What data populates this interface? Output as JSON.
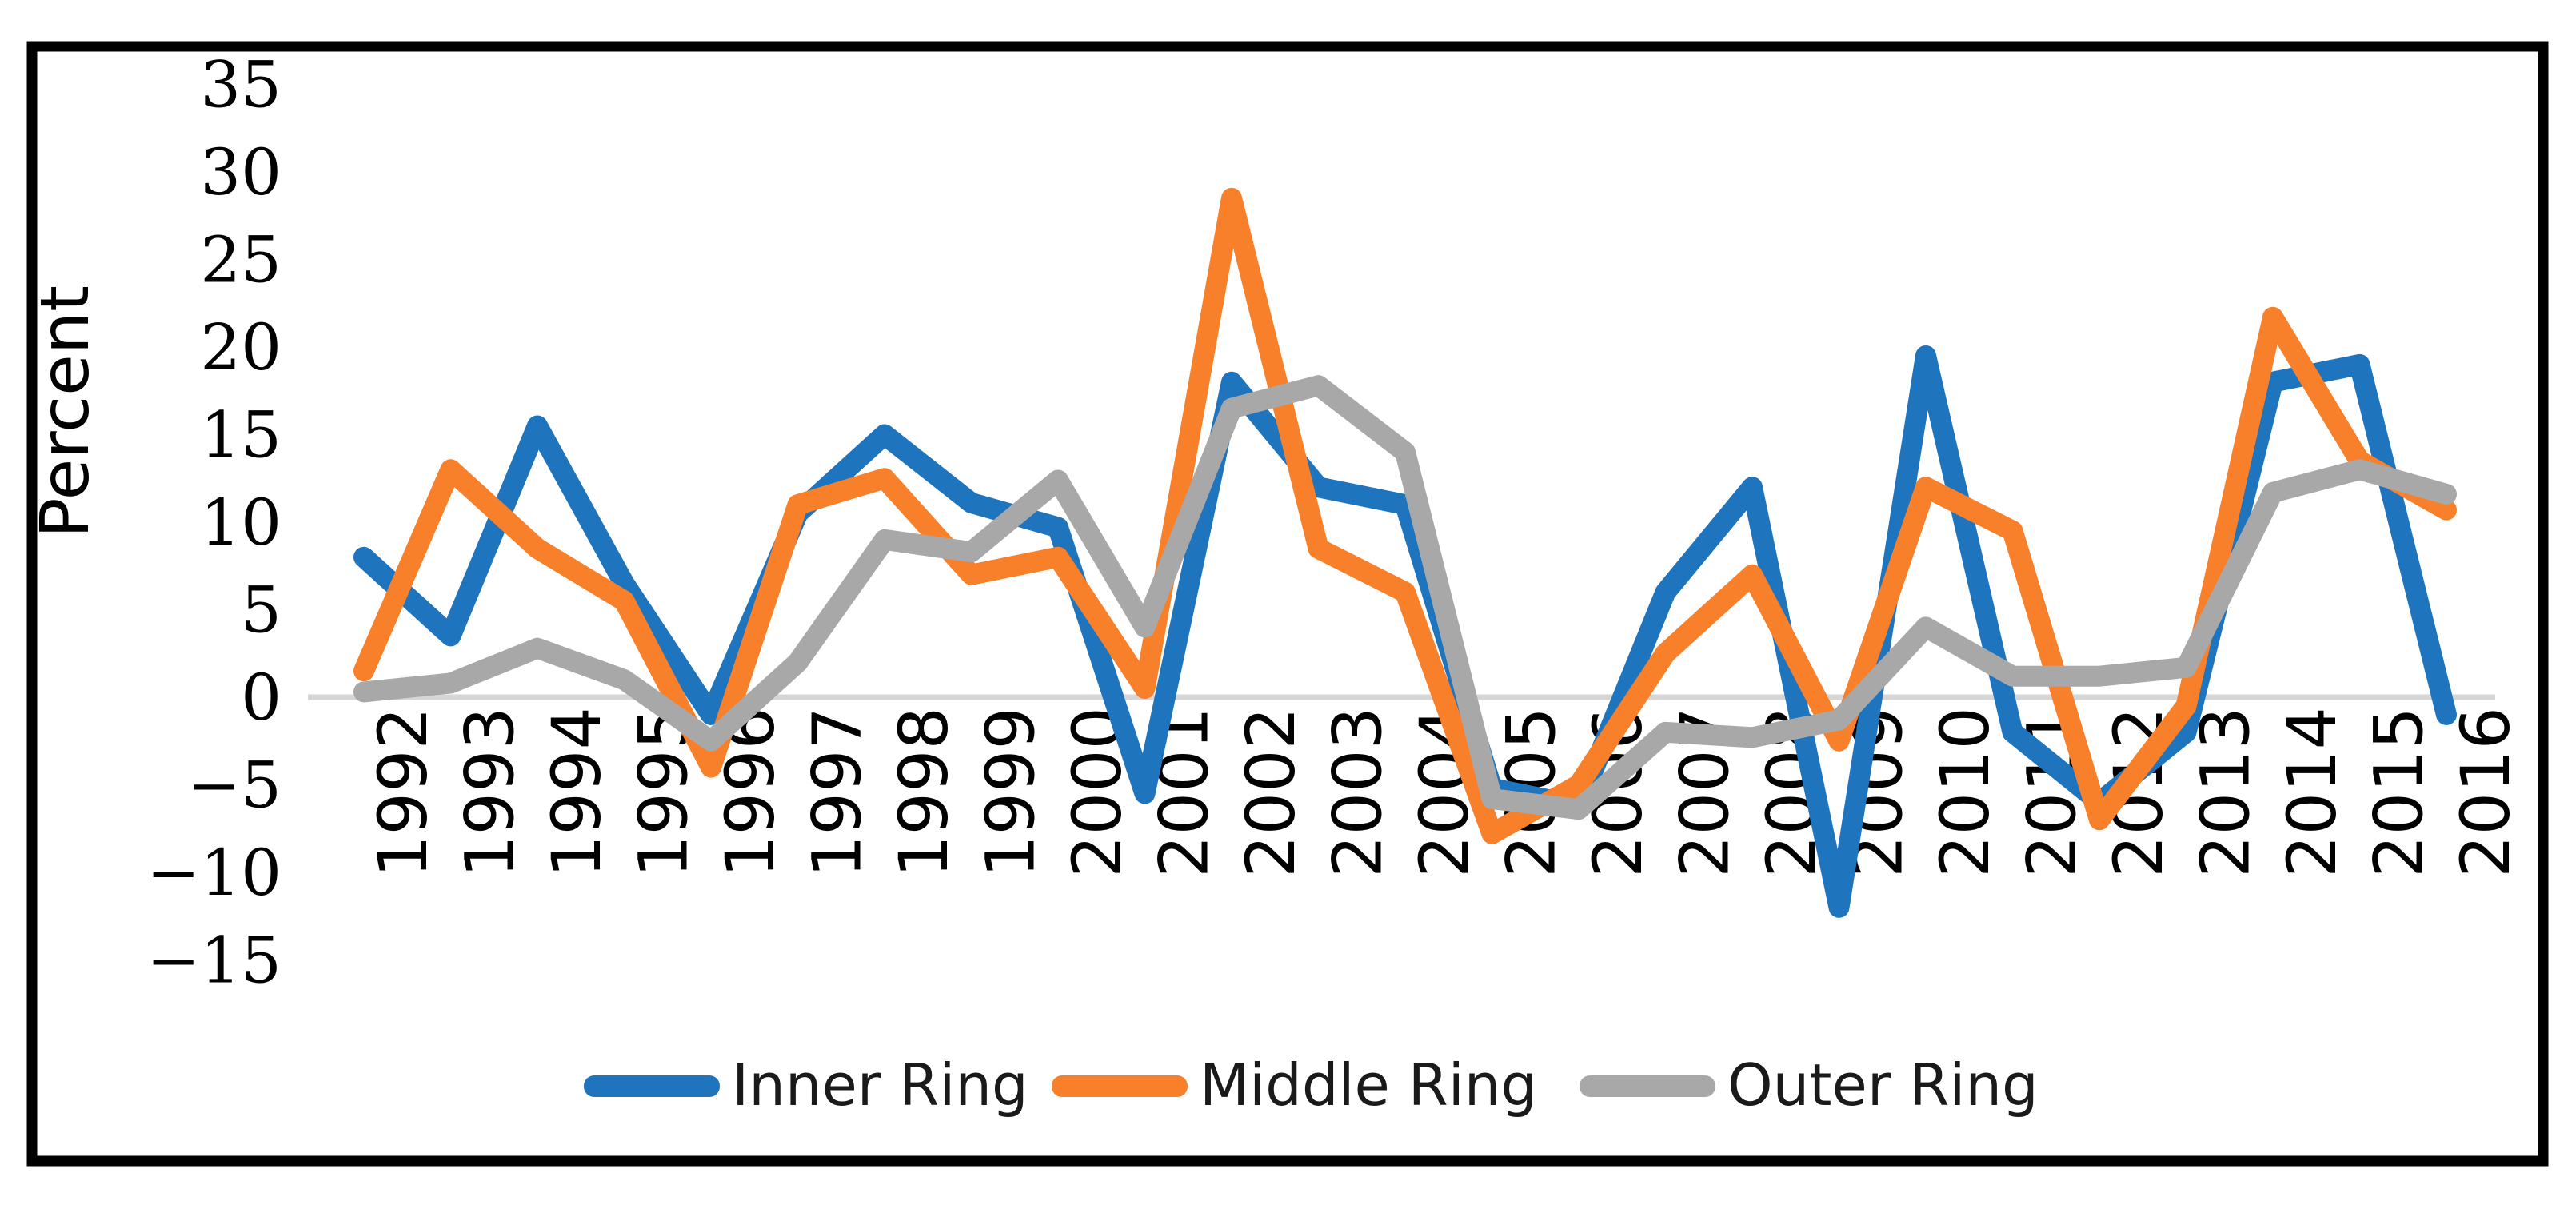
{
  "figure": {
    "background": "#ffffff",
    "border_color": "#000000"
  },
  "chart_data": {
    "type": "line",
    "title": "",
    "xlabel": "",
    "ylabel": "Percent",
    "x": [
      1992,
      1993,
      1994,
      1995,
      1996,
      1997,
      1998,
      1999,
      2000,
      2001,
      2002,
      2003,
      2004,
      2005,
      2006,
      2007,
      2008,
      2009,
      2010,
      2011,
      2012,
      2013,
      2014,
      2015,
      2016
    ],
    "series": [
      {
        "name": "Inner Ring",
        "color": "#1F74BE",
        "values": [
          8,
          3.5,
          15.5,
          6.5,
          -1,
          10.5,
          15,
          11.1,
          9.7,
          -5.5,
          18,
          12,
          11,
          -5.2,
          -6.2,
          6,
          12,
          -12,
          19.5,
          -2,
          -6,
          -2,
          18,
          19,
          -1
        ]
      },
      {
        "name": "Middle Ring",
        "color": "#F8802A",
        "values": [
          1.5,
          13,
          8.5,
          5.5,
          -4,
          11,
          12.5,
          7,
          8,
          0.5,
          28.5,
          8.5,
          6,
          -7.8,
          -5,
          2.5,
          7,
          -2.5,
          12,
          9.5,
          -7,
          -0.5,
          21.7,
          13.5,
          10.7
        ]
      },
      {
        "name": "Outer Ring",
        "color": "#A8A8A8",
        "values": [
          0.3,
          0.8,
          2.8,
          1,
          -2.5,
          2,
          9,
          8.3,
          12.4,
          4,
          16.5,
          17.8,
          14,
          -5.8,
          -6.4,
          -2,
          -2.3,
          -1.3,
          4,
          1.2,
          1.2,
          1.7,
          11.7,
          13,
          11.6
        ]
      }
    ],
    "y_ticks": [
      35,
      30,
      25,
      20,
      15,
      10,
      5,
      0,
      -5,
      -10,
      -15
    ],
    "ylim": [
      -15,
      35
    ],
    "grid": "zero-line-only",
    "zero_line_color": "#D6D6D6",
    "tick_label_color": "#000000",
    "legend_position": "bottom-center",
    "legend_labels": [
      "Inner Ring",
      "Middle Ring",
      "Outer Ring"
    ]
  }
}
